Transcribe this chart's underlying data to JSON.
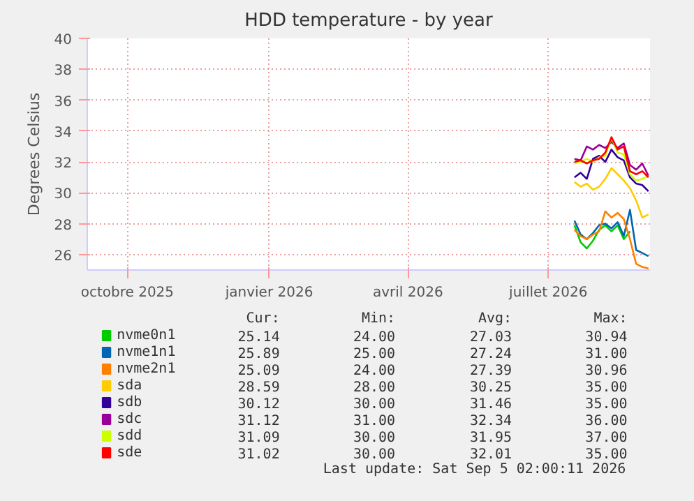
{
  "chart_data": {
    "type": "line",
    "title": "HDD temperature - by year",
    "ylabel": "Degrees Celsius",
    "x": [
      "2026-07-18",
      "2026-07-22",
      "2026-07-26",
      "2026-07-30",
      "2026-08-03",
      "2026-08-07",
      "2026-08-11",
      "2026-08-15",
      "2026-08-19",
      "2026-08-23",
      "2026-08-27",
      "2026-08-31",
      "2026-09-04"
    ],
    "xlim": [
      "2025-09-05",
      "2026-09-05"
    ],
    "xticks": [
      {
        "value": "2025-10-01",
        "label": "octobre 2025"
      },
      {
        "value": "2026-01-01",
        "label": "janvier 2026"
      },
      {
        "value": "2026-04-01",
        "label": "avril 2026"
      },
      {
        "value": "2026-07-01",
        "label": "juillet 2026"
      }
    ],
    "ylim": [
      25,
      40
    ],
    "yticks": [
      26,
      28,
      30,
      32,
      34,
      36,
      38,
      40
    ],
    "grid": true,
    "legend": "bottom",
    "line_style": "solid",
    "series": [
      {
        "name": "nvme0n1",
        "color": "#00cc00",
        "values": [
          27.9,
          26.8,
          26.4,
          26.9,
          27.6,
          27.9,
          27.5,
          27.9,
          27.0,
          27.5,
          null,
          null,
          null
        ]
      },
      {
        "name": "nvme1n1",
        "color": "#0066b3",
        "values": [
          28.2,
          27.3,
          27.0,
          27.4,
          27.9,
          28.0,
          27.7,
          28.1,
          27.2,
          28.9,
          26.3,
          26.1,
          25.9
        ]
      },
      {
        "name": "nvme2n1",
        "color": "#ff8000",
        "values": [
          27.6,
          27.2,
          27.0,
          27.3,
          27.5,
          28.8,
          28.4,
          28.7,
          28.3,
          27.0,
          25.4,
          25.2,
          25.1
        ]
      },
      {
        "name": "sda",
        "color": "#ffcc00",
        "values": [
          30.7,
          30.4,
          30.6,
          30.2,
          30.4,
          30.9,
          31.6,
          31.2,
          30.8,
          30.3,
          29.5,
          28.4,
          28.6
        ]
      },
      {
        "name": "sdb",
        "color": "#330099",
        "values": [
          31.0,
          31.3,
          30.9,
          32.2,
          32.4,
          32.0,
          32.8,
          32.3,
          32.1,
          31.0,
          30.6,
          30.5,
          30.1
        ]
      },
      {
        "name": "sdc",
        "color": "#990099",
        "values": [
          32.2,
          32.1,
          33.0,
          32.8,
          33.1,
          32.9,
          33.3,
          32.9,
          33.2,
          31.8,
          31.5,
          31.9,
          31.1
        ]
      },
      {
        "name": "sdd",
        "color": "#ccff00",
        "values": [
          31.9,
          32.0,
          32.2,
          32.0,
          32.3,
          32.4,
          33.6,
          32.6,
          32.5,
          31.2,
          30.8,
          30.9,
          31.1
        ]
      },
      {
        "name": "sde",
        "color": "#ff0000",
        "values": [
          32.0,
          32.1,
          31.9,
          32.1,
          32.2,
          32.6,
          33.6,
          32.8,
          33.0,
          31.4,
          31.2,
          31.4,
          31.0
        ]
      }
    ],
    "annotations": [
      "Cur:",
      "Min:",
      "Avg:",
      "Max:",
      "25.14",
      "24.00",
      "27.03",
      "30.94",
      "25.89",
      "25.00",
      "27.24",
      "31.00",
      "25.09",
      "24.00",
      "27.39",
      "30.96",
      "28.59",
      "28.00",
      "30.25",
      "35.00",
      "30.12",
      "30.00",
      "31.46",
      "35.00",
      "31.12",
      "31.00",
      "32.34",
      "36.00",
      "31.09",
      "30.00",
      "31.95",
      "37.00",
      "31.02",
      "30.00",
      "32.01",
      "35.00",
      "Last update: Sat Sep  5 02:00:11 2026"
    ]
  }
}
